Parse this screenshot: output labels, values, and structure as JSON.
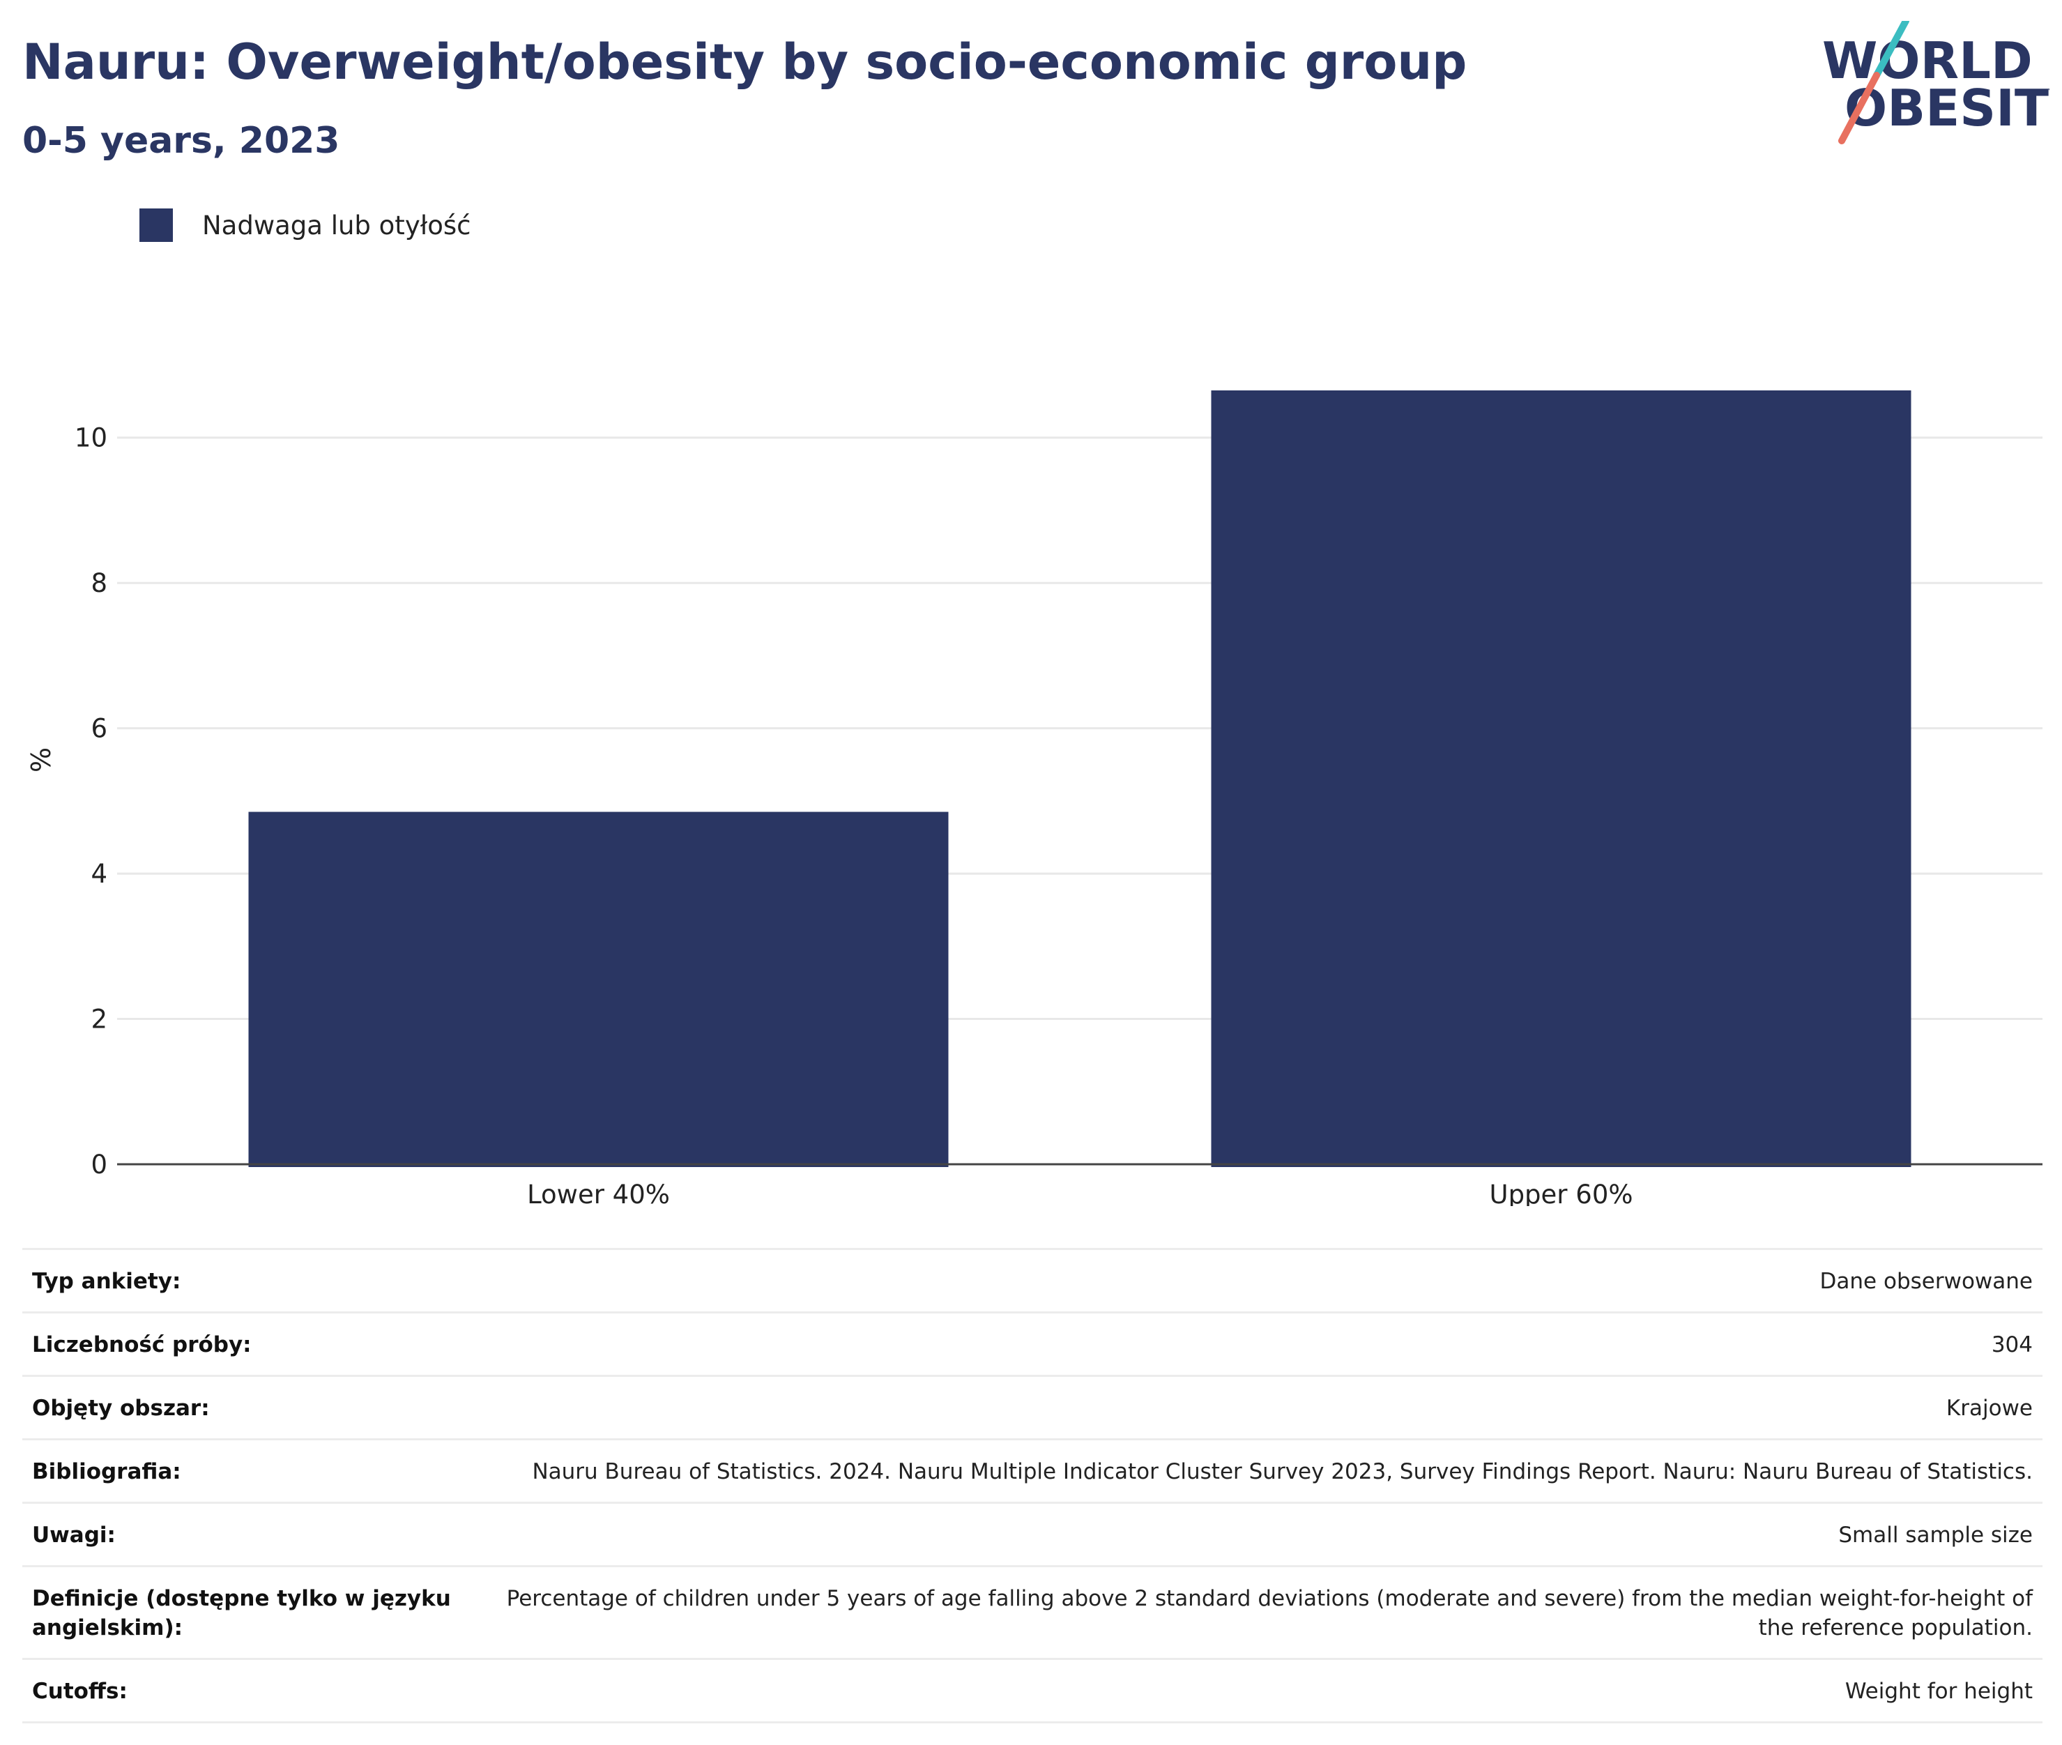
{
  "header": {
    "title": "Nauru: Overweight/obesity by socio-economic group",
    "subtitle": "0-5 years, 2023"
  },
  "logo": {
    "line1": "WORLD",
    "line2": "OBESITY",
    "colors": {
      "text": "#2a3663",
      "teal": "#3bbdc1",
      "coral": "#e8705f"
    }
  },
  "colors": {
    "bar": "#2a3663",
    "grid": "#e8e8e8",
    "axis": "#444444"
  },
  "chart_data": {
    "type": "bar",
    "categories": [
      "Lower 40%",
      "Upper 60%"
    ],
    "series": [
      {
        "name": "Nadwaga lub otyłość",
        "values": [
          4.85,
          10.65
        ]
      }
    ],
    "ylabel": "%",
    "xlabel": "",
    "ylim": [
      0,
      10.65
    ],
    "yticks": [
      0,
      2,
      4,
      6,
      8,
      10
    ],
    "grid": true,
    "legend": "top-left"
  },
  "info": [
    {
      "label": "Typ ankiety:",
      "value": "Dane obserwowane"
    },
    {
      "label": "Liczebność próby:",
      "value": "304"
    },
    {
      "label": "Objęty obszar:",
      "value": "Krajowe"
    },
    {
      "label": "Bibliografia:",
      "value": "Nauru Bureau of Statistics. 2024. Nauru Multiple Indicator Cluster Survey 2023, Survey Findings Report. Nauru: Nauru Bureau of Statistics."
    },
    {
      "label": "Uwagi:",
      "value": "Small sample size"
    },
    {
      "label": "Definicje (dostępne tylko w języku angielskim):",
      "value": "Percentage of children under 5 years of age falling above 2 standard deviations (moderate and severe) from the median weight-for-height of the reference population."
    },
    {
      "label": "Cutoffs:",
      "value": "Weight for height"
    }
  ]
}
